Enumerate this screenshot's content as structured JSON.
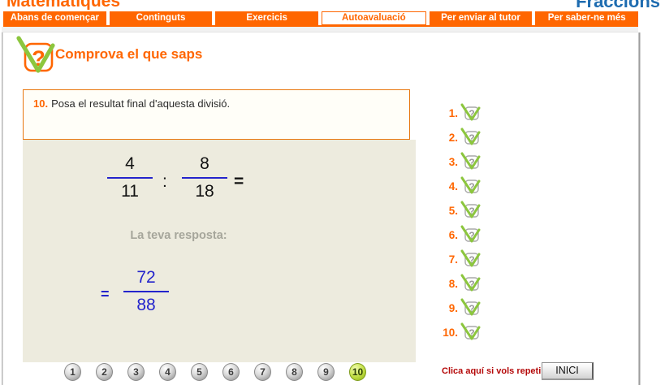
{
  "header": {
    "site_title": "Matemàtiques",
    "section_title": "Fraccions"
  },
  "nav": {
    "tabs": [
      {
        "label": "Abans de començar",
        "active": false
      },
      {
        "label": "Continguts",
        "active": false
      },
      {
        "label": "Exercicis",
        "active": false
      },
      {
        "label": "Autoavaluació",
        "active": true
      },
      {
        "label": "Per enviar al tutor",
        "active": false
      },
      {
        "label": "Per saber-ne més",
        "active": false
      }
    ]
  },
  "content": {
    "heading": "Comprova el que saps"
  },
  "question": {
    "number": "10.",
    "text": "Posa el resultat final d'aquesta divisió."
  },
  "exercise": {
    "fraction1": {
      "num": "4",
      "den": "11"
    },
    "operator": ":",
    "fraction2": {
      "num": "8",
      "den": "18"
    },
    "equals": "=",
    "answer_label": "La teva resposta:",
    "answer": {
      "equals": "=",
      "num": "72",
      "den": "88"
    }
  },
  "pager": {
    "buttons": [
      "1",
      "2",
      "3",
      "4",
      "5",
      "6",
      "7",
      "8",
      "9",
      "10"
    ],
    "active": "10"
  },
  "sidebar": {
    "items": [
      "1.",
      "2.",
      "3.",
      "4.",
      "5.",
      "6.",
      "7.",
      "8.",
      "9.",
      "10."
    ]
  },
  "footer": {
    "repeat_label": "Clica aquí si vols repetir",
    "restart_label": "INICI"
  },
  "colors": {
    "accent_orange": "#FF6600",
    "title_blue": "#1E6CB0",
    "fraction_blue": "#2424CC",
    "check_green": "#8CC63E",
    "panel_beige": "#EDEBDE",
    "repeat_red": "#B50A0A",
    "active_pager_green": "#C6E24B"
  }
}
